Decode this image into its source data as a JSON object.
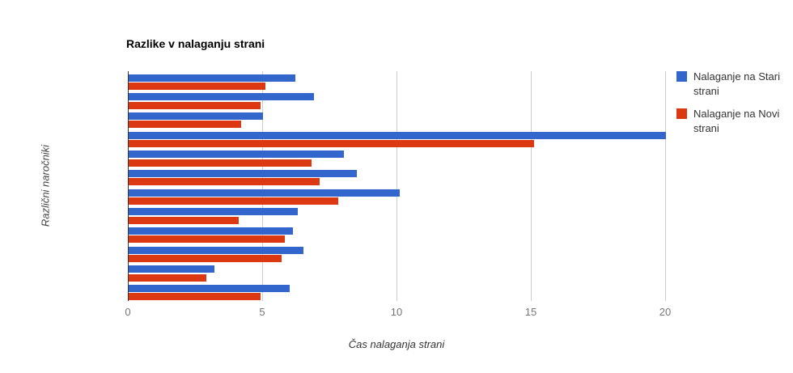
{
  "chart_data": {
    "type": "bar",
    "orientation": "horizontal",
    "title": "Razlike v nalaganju strani",
    "xlabel": "Čas nalaganja strani",
    "ylabel": "Različni naročniki",
    "xlim": [
      0,
      20
    ],
    "x_ticks": [
      0,
      5,
      10,
      15,
      20
    ],
    "grid": "vertical-only",
    "legend_position": "right",
    "group_count": 12,
    "series": [
      {
        "name": "Nalaganje na Stari strani",
        "color": "#3366cc",
        "values": [
          6.2,
          6.9,
          5,
          20,
          8,
          8.5,
          10.1,
          6.3,
          6.1,
          6.5,
          3.2,
          6
        ]
      },
      {
        "name": "Nalaganje na Novi strani",
        "color": "#dc3912",
        "values": [
          5.1,
          4.9,
          4.2,
          15.1,
          6.8,
          7.1,
          7.8,
          4.1,
          5.8,
          5.7,
          2.9,
          4.9
        ]
      }
    ]
  },
  "colors": {
    "axis_line": "#333333",
    "gridline": "#cccccc",
    "tick_label": "#757575",
    "title": "#000000",
    "legend_text": "#333333"
  }
}
